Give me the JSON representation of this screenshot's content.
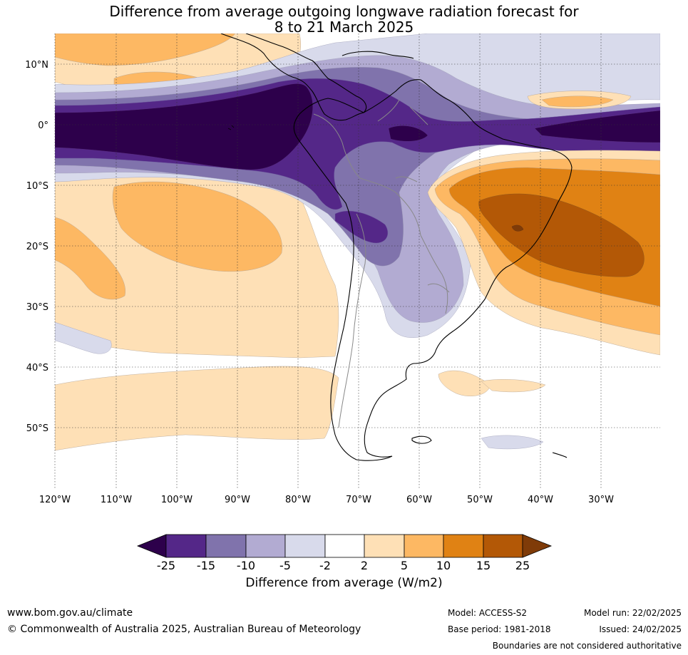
{
  "title_line1": "Difference from average outgoing longwave radiation forecast for",
  "title_line2": "8 to 21 March 2025",
  "lat_labels": [
    "10°N",
    "0°",
    "10°S",
    "20°S",
    "30°S",
    "40°S",
    "50°S"
  ],
  "lon_labels": [
    "120°W",
    "110°W",
    "100°W",
    "90°W",
    "80°W",
    "70°W",
    "60°W",
    "50°W",
    "40°W",
    "30°W"
  ],
  "colorbar": {
    "title": "Difference from average (W/m2)",
    "ticks": [
      "-25",
      "-15",
      "-10",
      "-5",
      "-2",
      "2",
      "5",
      "10",
      "15",
      "25"
    ],
    "colors": [
      "#2d004b",
      "#542788",
      "#8073ac",
      "#b2abd2",
      "#d8daeb",
      "#ffffff",
      "#fee0b6",
      "#fdb863",
      "#e08214",
      "#b35806",
      "#7f3b08"
    ]
  },
  "footer": {
    "url": "www.bom.gov.au/climate",
    "copyright": "© Commonwealth of Australia 2025, Australian Bureau of Meteorology",
    "model": "Model: ACCESS-S2",
    "base_period": "Base period: 1981-2018",
    "model_run": "Model run: 22/02/2025",
    "issued": "Issued: 24/02/2025",
    "disclaimer": "Boundaries are not considered authoritative"
  }
}
